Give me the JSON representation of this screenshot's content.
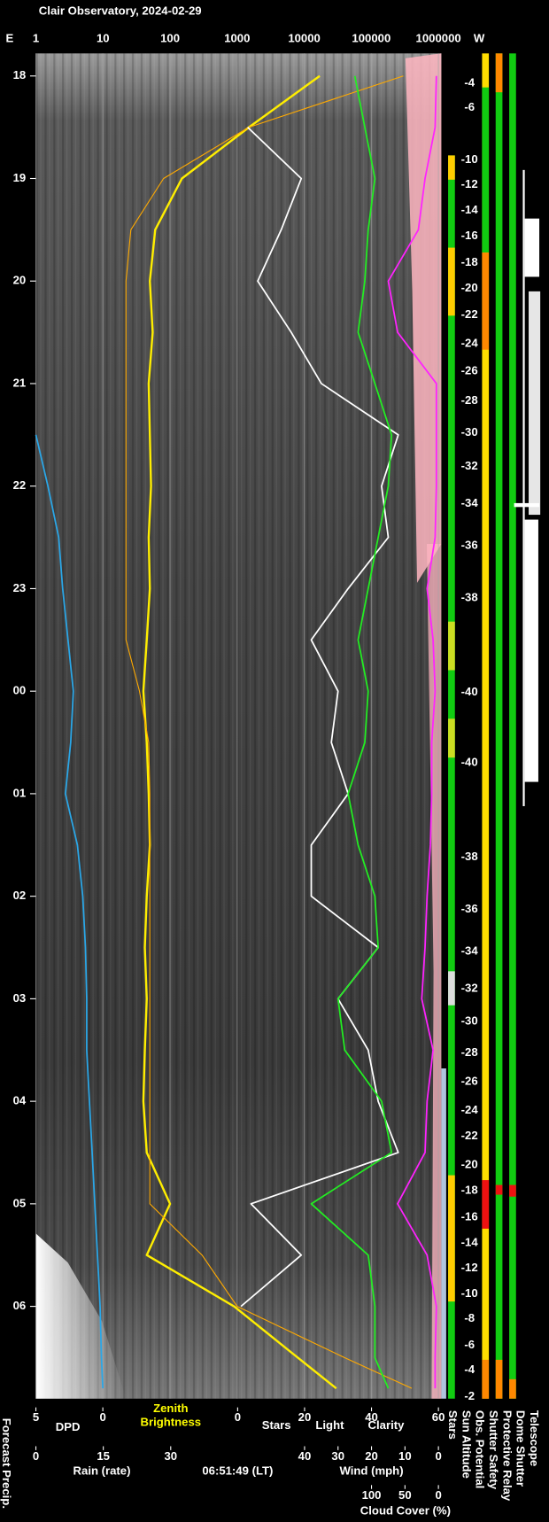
{
  "title": "Clair Observatory, 2024-02-29",
  "timestamp": "06:51:49 (LT)",
  "chart_data": {
    "type": "line",
    "orientation": "vertical",
    "ylim": [
      17.78,
      30.9
    ],
    "yticks": [
      18,
      19,
      20,
      21,
      22,
      23,
      {
        "value": 24,
        "label": "00"
      },
      {
        "value": 25,
        "label": "01"
      },
      {
        "value": 26,
        "label": "02"
      },
      {
        "value": 27,
        "label": "03"
      },
      {
        "value": 28,
        "label": "04"
      },
      {
        "value": 29,
        "label": "05"
      },
      {
        "value": 30,
        "label": "06"
      }
    ],
    "east_label": "E",
    "west_label": "W",
    "grid": true,
    "axes": [
      {
        "scale": "log",
        "lim": [
          1,
          1000000
        ],
        "ticks": [
          1,
          10,
          100,
          1000,
          10000,
          100000,
          1000000
        ]
      },
      {
        "label": "DPD",
        "color": "#2aa7e8",
        "lim": [
          5,
          0
        ],
        "ticks": [
          5,
          0
        ]
      },
      {
        "lim": [
          0,
          60
        ],
        "ticks": [
          0,
          20,
          40,
          60
        ]
      },
      {
        "label": "Rain (rate)",
        "color": "#2aa7e8",
        "lim": [
          0,
          30
        ],
        "ticks": [
          0,
          15,
          30
        ]
      },
      {
        "label": "Wind (mph)",
        "color": "#ffb6c1",
        "lim": [
          40,
          0
        ],
        "ticks": [
          40,
          30,
          20,
          10,
          0
        ]
      },
      {
        "label": "Cloud Cover (%)",
        "color": "#ff22ff",
        "lim": [
          100,
          0
        ],
        "ticks": [
          100,
          50,
          0
        ]
      }
    ],
    "x": [
      18,
      18.5,
      19,
      19.5,
      20,
      20.5,
      21,
      21.5,
      22,
      22.5,
      23,
      23.5,
      24,
      24.5,
      25,
      25.5,
      26,
      26.5,
      27,
      27.5,
      28,
      28.5,
      29,
      29.5,
      30,
      30.5,
      30.8
    ],
    "series": [
      {
        "name": "Zenith Brightness",
        "color": "#ffee00",
        "axis": 0,
        "values": [
          17000,
          1500,
          150,
          60,
          50,
          55,
          48,
          50,
          52,
          48,
          50,
          45,
          40,
          45,
          48,
          50,
          45,
          42,
          45,
          42,
          40,
          45,
          100,
          45,
          900,
          8000,
          30000
        ]
      },
      {
        "name": "Light",
        "color": "#ffaa00",
        "axis": 0,
        "values": [
          300000,
          1500,
          80,
          26,
          22,
          22,
          22,
          22,
          22,
          22,
          22,
          22,
          35,
          48,
          50,
          50,
          50,
          50,
          50,
          50,
          50,
          50,
          50,
          300,
          1000,
          40000,
          400000
        ]
      },
      {
        "name": "Stars",
        "color": "#ffffff",
        "axis": 2,
        "values": [
          null,
          3,
          19,
          13,
          6,
          16,
          25,
          48,
          43,
          45,
          33,
          22,
          30,
          28,
          33,
          22,
          22,
          42,
          30,
          39,
          42,
          48,
          4,
          19,
          1,
          null,
          null
        ]
      },
      {
        "name": "Clarity",
        "color": "#22ee22",
        "axis": 2,
        "values": [
          35,
          38,
          41,
          39,
          38,
          36,
          41,
          46,
          45,
          42,
          39,
          36,
          39,
          38,
          33,
          36,
          41,
          42,
          30,
          32,
          43,
          46,
          22,
          39,
          41,
          41,
          45
        ]
      },
      {
        "color": "#ff22ff",
        "axis": 5,
        "values": [
          3,
          5,
          20,
          30,
          75,
          61,
          3,
          3,
          3,
          5,
          17,
          8,
          5,
          10,
          10,
          12,
          17,
          20,
          25,
          8,
          17,
          20,
          61,
          17,
          3,
          5,
          5
        ]
      },
      {
        "color": "#2aa7e8",
        "axis": 1,
        "values": [
          null,
          null,
          null,
          null,
          null,
          null,
          null,
          5,
          4.1,
          3.3,
          3.0,
          2.6,
          2.2,
          2.4,
          2.8,
          1.9,
          1.5,
          1.3,
          1.2,
          1.2,
          1.0,
          0.8,
          0.6,
          0.4,
          0.2,
          0.1,
          0
        ]
      }
    ],
    "sun_altitude": {
      "x": [
        18.07,
        18.31,
        18.82,
        19.06,
        19.31,
        19.56,
        19.82,
        20.07,
        20.33,
        20.61,
        20.88,
        21.17,
        21.48,
        21.81,
        22.17,
        22.58,
        23.09,
        24.01,
        24.7,
        25.62,
        26.13,
        26.54,
        26.9,
        27.22,
        27.53,
        27.81,
        28.09,
        28.34,
        28.62,
        28.87,
        29.13,
        29.38,
        29.63,
        29.88,
        30.12,
        30.38,
        30.62,
        30.88
      ],
      "values": [
        -4,
        -6,
        -10,
        -12,
        -14,
        -16,
        -18,
        -20,
        -22,
        -24,
        -26,
        -28,
        -30,
        -32,
        -34,
        -36,
        -38,
        -40,
        -40,
        -38,
        -36,
        -34,
        -32,
        -30,
        -28,
        -26,
        -24,
        -22,
        -20,
        -18,
        -16,
        -14,
        -12,
        -10,
        -8,
        -6,
        -4,
        -2
      ]
    },
    "side_labels": {
      "left": "Forecast Precip.",
      "right": [
        "Stars",
        "Sun Altitude",
        "Obs. Potential",
        "Shutter Safety",
        "Protective Relay",
        "Dome Shutter",
        "Telescope"
      ]
    }
  }
}
